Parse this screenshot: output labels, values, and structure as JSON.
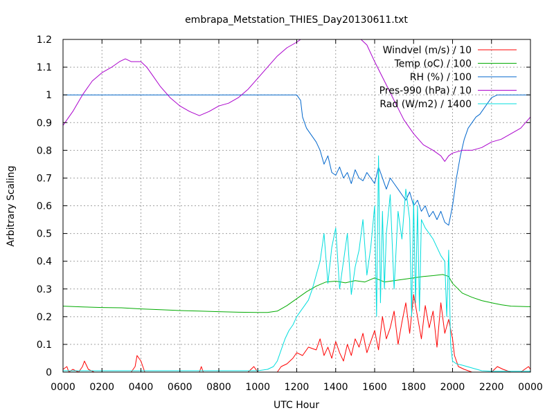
{
  "chart_data": {
    "type": "line",
    "title": "embrapa_Metstation_THIES_Day20130611.txt",
    "xlabel": "UTC Hour",
    "ylabel": "Arbitrary Scaling",
    "xlim": [
      0,
      24
    ],
    "ylim": [
      0,
      1.2
    ],
    "grid": true,
    "legend_position": "top-right",
    "x_ticks": [
      {
        "value": 0,
        "label": "0000"
      },
      {
        "value": 2,
        "label": "0200"
      },
      {
        "value": 4,
        "label": "0400"
      },
      {
        "value": 6,
        "label": "0600"
      },
      {
        "value": 8,
        "label": "0800"
      },
      {
        "value": 10,
        "label": "1000"
      },
      {
        "value": 12,
        "label": "1200"
      },
      {
        "value": 14,
        "label": "1400"
      },
      {
        "value": 16,
        "label": "1600"
      },
      {
        "value": 18,
        "label": "1800"
      },
      {
        "value": 20,
        "label": "2000"
      },
      {
        "value": 22,
        "label": "2200"
      },
      {
        "value": 24,
        "label": "0000"
      }
    ],
    "y_ticks": [
      {
        "value": 0,
        "label": "0"
      },
      {
        "value": 0.1,
        "label": "0.1"
      },
      {
        "value": 0.2,
        "label": "0.2"
      },
      {
        "value": 0.3,
        "label": "0.3"
      },
      {
        "value": 0.4,
        "label": "0.4"
      },
      {
        "value": 0.5,
        "label": "0.5"
      },
      {
        "value": 0.6,
        "label": "0.6"
      },
      {
        "value": 0.7,
        "label": "0.7"
      },
      {
        "value": 0.8,
        "label": "0.8"
      },
      {
        "value": 0.9,
        "label": "0.9"
      },
      {
        "value": 1.0,
        "label": "1"
      },
      {
        "value": 1.1,
        "label": "1.1"
      },
      {
        "value": 1.2,
        "label": "1.2"
      }
    ],
    "series": [
      {
        "name": "Windvel (m/s) / 10",
        "color": "#ff0000",
        "x": [
          0,
          0.2,
          0.3,
          0.5,
          0.8,
          1.0,
          1.1,
          1.3,
          1.6,
          2.0,
          2.5,
          3.0,
          3.5,
          3.7,
          3.8,
          3.9,
          4.0,
          4.1,
          4.2,
          4.5,
          5.0,
          6.0,
          7.0,
          7.1,
          7.2,
          7.5,
          8.0,
          8.5,
          9.0,
          9.5,
          9.8,
          10.0,
          10.5,
          11.0,
          11.2,
          11.5,
          11.8,
          12.0,
          12.3,
          12.6,
          13.0,
          13.2,
          13.4,
          13.6,
          13.8,
          14.0,
          14.2,
          14.4,
          14.6,
          14.8,
          15.0,
          15.2,
          15.4,
          15.6,
          15.8,
          16.0,
          16.2,
          16.4,
          16.6,
          16.8,
          17.0,
          17.2,
          17.4,
          17.6,
          17.8,
          18.0,
          18.2,
          18.4,
          18.6,
          18.8,
          19.0,
          19.2,
          19.4,
          19.6,
          19.8,
          20.0,
          20.1,
          20.3,
          20.6,
          21.0,
          21.5,
          22.0,
          22.3,
          22.6,
          23.0,
          23.5,
          23.9,
          24.0
        ],
        "values": [
          0.01,
          0.02,
          0.0,
          0.01,
          0.0,
          0.02,
          0.04,
          0.01,
          0.0,
          0.0,
          0.0,
          0.0,
          0.0,
          0.02,
          0.06,
          0.05,
          0.04,
          0.02,
          0.0,
          0.0,
          0.0,
          0.0,
          0.0,
          0.02,
          0.0,
          0.0,
          0.0,
          0.0,
          0.0,
          0.0,
          0.02,
          0.0,
          0.0,
          0.0,
          0.02,
          0.03,
          0.05,
          0.07,
          0.06,
          0.09,
          0.08,
          0.12,
          0.06,
          0.09,
          0.05,
          0.11,
          0.07,
          0.04,
          0.1,
          0.06,
          0.12,
          0.09,
          0.14,
          0.07,
          0.11,
          0.15,
          0.08,
          0.2,
          0.12,
          0.16,
          0.22,
          0.1,
          0.18,
          0.25,
          0.14,
          0.28,
          0.2,
          0.12,
          0.24,
          0.16,
          0.22,
          0.09,
          0.25,
          0.14,
          0.19,
          0.12,
          0.06,
          0.02,
          0.01,
          0.0,
          0.0,
          0.0,
          0.02,
          0.01,
          0.0,
          0.0,
          0.02,
          0.01
        ]
      },
      {
        "name": "Temp (oC) / 100",
        "color": "#00aa00",
        "x": [
          0,
          1,
          2,
          3,
          4,
          5,
          6,
          7,
          8,
          9,
          10,
          10.5,
          11,
          11.5,
          12,
          12.5,
          13,
          13.5,
          14,
          14.5,
          15,
          15.5,
          16,
          16.5,
          17,
          17.5,
          18,
          18.5,
          19,
          19.5,
          19.8,
          20,
          20.5,
          21,
          21.5,
          22,
          22.5,
          23,
          24
        ],
        "values": [
          0.238,
          0.235,
          0.233,
          0.232,
          0.228,
          0.225,
          0.222,
          0.22,
          0.218,
          0.216,
          0.215,
          0.215,
          0.22,
          0.24,
          0.265,
          0.29,
          0.31,
          0.325,
          0.328,
          0.322,
          0.33,
          0.325,
          0.34,
          0.325,
          0.33,
          0.335,
          0.34,
          0.345,
          0.348,
          0.352,
          0.345,
          0.32,
          0.285,
          0.27,
          0.258,
          0.25,
          0.243,
          0.238,
          0.236
        ]
      },
      {
        "name": "RH (%) / 100",
        "color": "#0066cc",
        "x": [
          0,
          6,
          12,
          12.2,
          12.3,
          12.5,
          12.7,
          13.0,
          13.2,
          13.4,
          13.6,
          13.8,
          14.0,
          14.2,
          14.4,
          14.6,
          14.8,
          15.0,
          15.2,
          15.4,
          15.6,
          15.8,
          16.0,
          16.2,
          16.4,
          16.6,
          16.8,
          17.0,
          17.2,
          17.4,
          17.6,
          17.8,
          18.0,
          18.2,
          18.4,
          18.6,
          18.8,
          19.0,
          19.2,
          19.4,
          19.6,
          19.8,
          20.0,
          20.2,
          20.4,
          20.6,
          20.8,
          21.0,
          21.2,
          21.4,
          21.6,
          21.8,
          22.0,
          22.3,
          22.6,
          23.0,
          24.0
        ],
        "values": [
          1.0,
          1.0,
          1.0,
          0.98,
          0.92,
          0.88,
          0.86,
          0.83,
          0.8,
          0.75,
          0.78,
          0.72,
          0.71,
          0.74,
          0.7,
          0.72,
          0.68,
          0.73,
          0.7,
          0.69,
          0.72,
          0.7,
          0.68,
          0.74,
          0.7,
          0.66,
          0.7,
          0.68,
          0.66,
          0.64,
          0.62,
          0.65,
          0.6,
          0.62,
          0.58,
          0.6,
          0.56,
          0.58,
          0.55,
          0.58,
          0.54,
          0.53,
          0.6,
          0.7,
          0.78,
          0.84,
          0.88,
          0.9,
          0.92,
          0.93,
          0.95,
          0.97,
          0.99,
          1.0,
          1.0,
          1.0,
          1.0
        ]
      },
      {
        "name": "Pres-990 (hPa) / 10",
        "color": "#aa00cc",
        "x": [
          0,
          0.5,
          1.0,
          1.5,
          2.0,
          2.5,
          2.9,
          3.2,
          3.5,
          4.0,
          4.3,
          4.6,
          5.0,
          5.5,
          6.0,
          6.5,
          7.0,
          7.5,
          8.0,
          8.5,
          9.0,
          9.5,
          10.0,
          10.5,
          11.0,
          11.5,
          12.0,
          12.2,
          12.4,
          15.3,
          15.6,
          16.0,
          16.5,
          17.0,
          17.5,
          18.0,
          18.5,
          19.0,
          19.4,
          19.6,
          19.8,
          20.0,
          20.5,
          21.0,
          21.5,
          22.0,
          22.5,
          23.0,
          23.5,
          24.0
        ],
        "values": [
          0.89,
          0.94,
          1.0,
          1.05,
          1.08,
          1.1,
          1.12,
          1.13,
          1.12,
          1.12,
          1.1,
          1.07,
          1.03,
          0.99,
          0.96,
          0.94,
          0.925,
          0.94,
          0.96,
          0.97,
          0.99,
          1.02,
          1.06,
          1.1,
          1.14,
          1.17,
          1.19,
          1.2,
          1.2,
          1.2,
          1.18,
          1.12,
          1.05,
          0.98,
          0.91,
          0.86,
          0.82,
          0.8,
          0.78,
          0.76,
          0.78,
          0.79,
          0.8,
          0.8,
          0.81,
          0.83,
          0.84,
          0.86,
          0.88,
          0.92
        ]
      },
      {
        "name": "Rad (W/m2) / 1400",
        "color": "#00dddd",
        "x": [
          0,
          10.0,
          10.5,
          10.8,
          11.0,
          11.2,
          11.4,
          11.6,
          11.8,
          12.0,
          12.2,
          12.4,
          12.6,
          12.8,
          13.0,
          13.2,
          13.4,
          13.6,
          13.8,
          14.0,
          14.2,
          14.4,
          14.6,
          14.8,
          15.0,
          15.2,
          15.4,
          15.6,
          15.8,
          16.0,
          16.1,
          16.2,
          16.3,
          16.4,
          16.5,
          16.6,
          16.8,
          17.0,
          17.2,
          17.4,
          17.6,
          17.8,
          17.9,
          18.0,
          18.1,
          18.2,
          18.3,
          18.4,
          18.6,
          18.8,
          19.0,
          19.2,
          19.4,
          19.6,
          19.7,
          19.8,
          19.9,
          20.0,
          20.2,
          20.5,
          21.0,
          21.5,
          22.0,
          24.0
        ],
        "values": [
          0.005,
          0.005,
          0.01,
          0.02,
          0.04,
          0.08,
          0.12,
          0.15,
          0.17,
          0.2,
          0.22,
          0.24,
          0.26,
          0.3,
          0.35,
          0.4,
          0.5,
          0.32,
          0.45,
          0.52,
          0.3,
          0.4,
          0.5,
          0.28,
          0.38,
          0.44,
          0.55,
          0.35,
          0.45,
          0.6,
          0.2,
          0.78,
          0.25,
          0.58,
          0.3,
          0.5,
          0.64,
          0.3,
          0.58,
          0.48,
          0.66,
          0.55,
          0.2,
          0.62,
          0.25,
          0.6,
          0.22,
          0.55,
          0.52,
          0.5,
          0.48,
          0.45,
          0.42,
          0.4,
          0.2,
          0.44,
          0.1,
          0.04,
          0.03,
          0.025,
          0.015,
          0.005,
          0.003,
          0.003
        ]
      }
    ]
  }
}
